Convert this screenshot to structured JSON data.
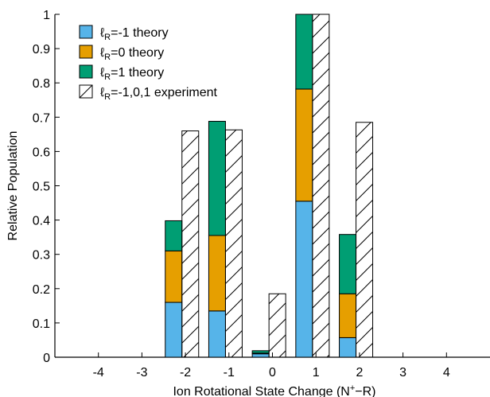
{
  "chart_data": {
    "type": "bar",
    "stacked_series_with_hatched_comparison": true,
    "xlabel": "Ion Rotational State Change (N",
    "xlabel_sup": "+",
    "xlabel_tail": "−R)",
    "ylabel": "Relative Population",
    "xlim": [
      -5,
      5
    ],
    "ylim": [
      0,
      1
    ],
    "x_ticks": [
      -4,
      -3,
      -2,
      -1,
      0,
      1,
      2,
      3,
      4
    ],
    "x_tick_labels": [
      "-4",
      "-3",
      "-2",
      "-1",
      "0",
      "1",
      "2",
      "3",
      "4"
    ],
    "y_ticks": [
      0,
      0.1,
      0.2,
      0.3,
      0.4,
      0.5,
      0.6,
      0.7,
      0.8,
      0.9,
      1
    ],
    "y_tick_labels": [
      "0",
      "0.1",
      "0.2",
      "0.3",
      "0.4",
      "0.5",
      "0.6",
      "0.7",
      "0.8",
      "0.9",
      "1"
    ],
    "categories": [
      -2,
      -1,
      0,
      1,
      2
    ],
    "theory_series": [
      {
        "name_prefix": "ℓ",
        "name_sub": "R",
        "name_suffix": "=-1 theory",
        "color": "#56B4E9",
        "values": [
          0.16,
          0.135,
          0.01,
          0.455,
          0.057
        ]
      },
      {
        "name_prefix": "ℓ",
        "name_sub": "R",
        "name_suffix": "=0 theory",
        "color": "#E69F00",
        "values": [
          0.15,
          0.22,
          0.002,
          0.327,
          0.128
        ]
      },
      {
        "name_prefix": "ℓ",
        "name_sub": "R",
        "name_suffix": "=1 theory",
        "color": "#009E73",
        "values": [
          0.088,
          0.333,
          0.007,
          0.218,
          0.173
        ]
      }
    ],
    "experiment_series": {
      "name_prefix": "ℓ",
      "name_sub": "R",
      "name_suffix": "=-1,0,1 experiment",
      "values": [
        0.66,
        0.663,
        0.185,
        1.0,
        0.685
      ]
    },
    "legend_position": "top-left",
    "grid": false
  }
}
